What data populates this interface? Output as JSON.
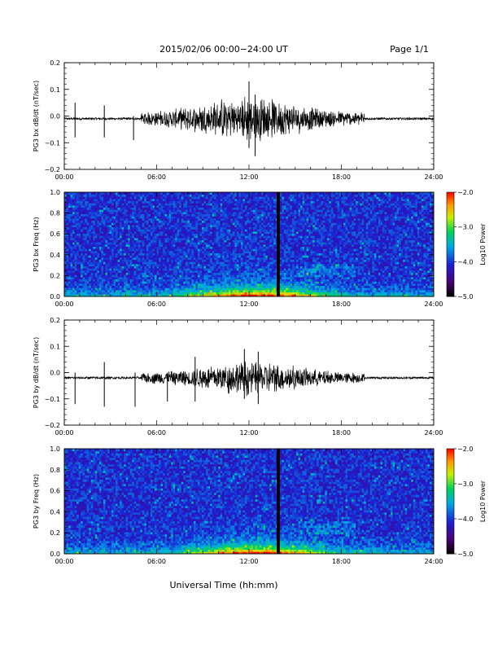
{
  "header": {
    "title": "2015/02/06  00:00−24:00 UT",
    "page": "Page 1/1"
  },
  "xlabel": "Universal Time (hh:mm)",
  "chart_data": [
    {
      "type": "line",
      "ylabel": "PG3 bx dB/dt (nT/sec)",
      "xlim_hours": [
        0,
        24
      ],
      "ylim": [
        -0.2,
        0.2
      ],
      "xticks": [
        "00:00",
        "06:00",
        "12:00",
        "18:00",
        "24:00"
      ],
      "yticks": [
        "−0.2",
        "−0.1",
        "0.0",
        "0.1",
        "0.2"
      ],
      "series": [
        {
          "values_approx": {
            "baseline": -0.01,
            "quiet_noise_amp": 0.004,
            "active_interval_hours": [
              5.0,
              19.5
            ],
            "peak_active_amp": 0.09,
            "spikes": [
              {
                "t": 0.7,
                "min": -0.08,
                "max": 0.05
              },
              {
                "t": 2.6,
                "min": -0.08,
                "max": 0.04
              },
              {
                "t": 4.5,
                "min": -0.09,
                "max": 0.0
              },
              {
                "t": 12.0,
                "min": -0.12,
                "max": 0.13
              },
              {
                "t": 12.4,
                "min": -0.15,
                "max": 0.08
              }
            ]
          }
        }
      ]
    },
    {
      "type": "heatmap",
      "ylabel": "PG3 bx Freq (Hz)",
      "xlim_hours": [
        0,
        24
      ],
      "ylim": [
        0.0,
        1.0
      ],
      "xticks": [
        "00:00",
        "06:00",
        "12:00",
        "18:00",
        "24:00"
      ],
      "yticks": [
        "0.0",
        "0.2",
        "0.4",
        "0.6",
        "0.8",
        "1.0"
      ],
      "colorbar": {
        "label": "Log10 Power",
        "range": [
          -5.0,
          -2.0
        ],
        "ticks": [
          "−2.0",
          "−3.0",
          "−4.0",
          "−5.0"
        ]
      },
      "data_gap_hours": [
        13.8,
        14.0
      ]
    },
    {
      "type": "line",
      "ylabel": "PG3 by dB/dt (nT/sec)",
      "xlim_hours": [
        0,
        24
      ],
      "ylim": [
        -0.2,
        0.2
      ],
      "xticks": [
        "00:00",
        "06:00",
        "12:00",
        "18:00",
        "24:00"
      ],
      "yticks": [
        "−0.2",
        "−0.1",
        "0.0",
        "0.1",
        "0.2"
      ],
      "series": [
        {
          "values_approx": {
            "baseline": -0.02,
            "quiet_noise_amp": 0.004,
            "active_interval_hours": [
              5.0,
              19.5
            ],
            "peak_active_amp": 0.07,
            "spikes": [
              {
                "t": 0.7,
                "min": -0.12,
                "max": 0.0
              },
              {
                "t": 2.6,
                "min": -0.13,
                "max": 0.04
              },
              {
                "t": 4.6,
                "min": -0.13,
                "max": 0.0
              },
              {
                "t": 6.7,
                "min": -0.11,
                "max": 0.0
              },
              {
                "t": 8.5,
                "min": -0.11,
                "max": 0.06
              },
              {
                "t": 11.7,
                "min": -0.1,
                "max": 0.09
              },
              {
                "t": 12.6,
                "min": -0.12,
                "max": 0.08
              }
            ]
          }
        }
      ]
    },
    {
      "type": "heatmap",
      "ylabel": "PG3 by Freq (Hz)",
      "xlim_hours": [
        0,
        24
      ],
      "ylim": [
        0.0,
        1.0
      ],
      "xticks": [
        "00:00",
        "06:00",
        "12:00",
        "18:00",
        "24:00"
      ],
      "yticks": [
        "0.0",
        "0.2",
        "0.4",
        "0.6",
        "0.8",
        "1.0"
      ],
      "colorbar": {
        "label": "Log10 Power",
        "range": [
          -5.0,
          -2.0
        ],
        "ticks": [
          "−2.0",
          "−3.0",
          "−4.0",
          "−5.0"
        ]
      },
      "data_gap_hours": [
        13.8,
        14.0
      ]
    }
  ]
}
